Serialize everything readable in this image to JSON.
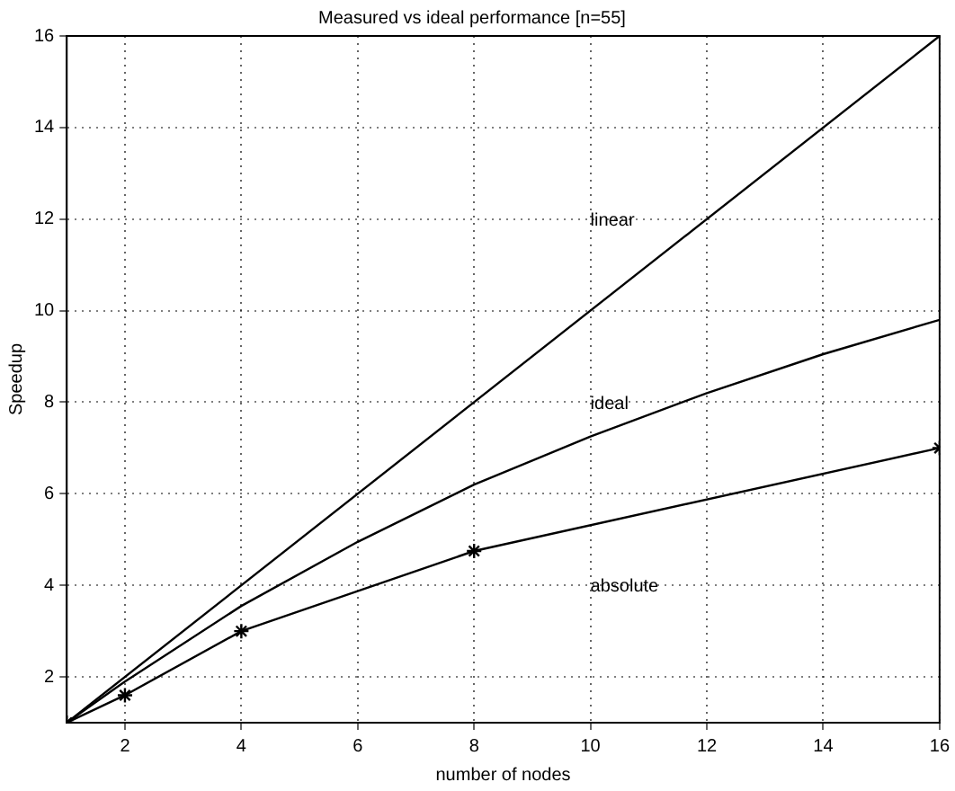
{
  "chart_data": {
    "type": "line",
    "title": "Measured vs ideal performance [n=55]",
    "xlabel": "number of nodes",
    "ylabel": "Speedup",
    "xlim": [
      1,
      16
    ],
    "ylim": [
      1,
      16
    ],
    "xticks": [
      2,
      4,
      6,
      8,
      10,
      12,
      14,
      16
    ],
    "yticks": [
      2,
      4,
      6,
      8,
      10,
      12,
      14,
      16
    ],
    "grid": true,
    "series": [
      {
        "name": "linear",
        "color": "#000000",
        "x": [
          1,
          16
        ],
        "values": [
          1,
          16
        ]
      },
      {
        "name": "ideal",
        "color": "#000000",
        "x": [
          1,
          2,
          4,
          6,
          8,
          10,
          12,
          14,
          16
        ],
        "values": [
          1,
          1.9,
          3.55,
          4.95,
          6.2,
          7.25,
          8.2,
          9.05,
          9.8
        ]
      },
      {
        "name": "absolute",
        "color": "#000000",
        "x": [
          1,
          2,
          4,
          8,
          16
        ],
        "values": [
          1,
          1.6,
          3,
          4.75,
          7
        ],
        "marker": "cross"
      }
    ]
  }
}
